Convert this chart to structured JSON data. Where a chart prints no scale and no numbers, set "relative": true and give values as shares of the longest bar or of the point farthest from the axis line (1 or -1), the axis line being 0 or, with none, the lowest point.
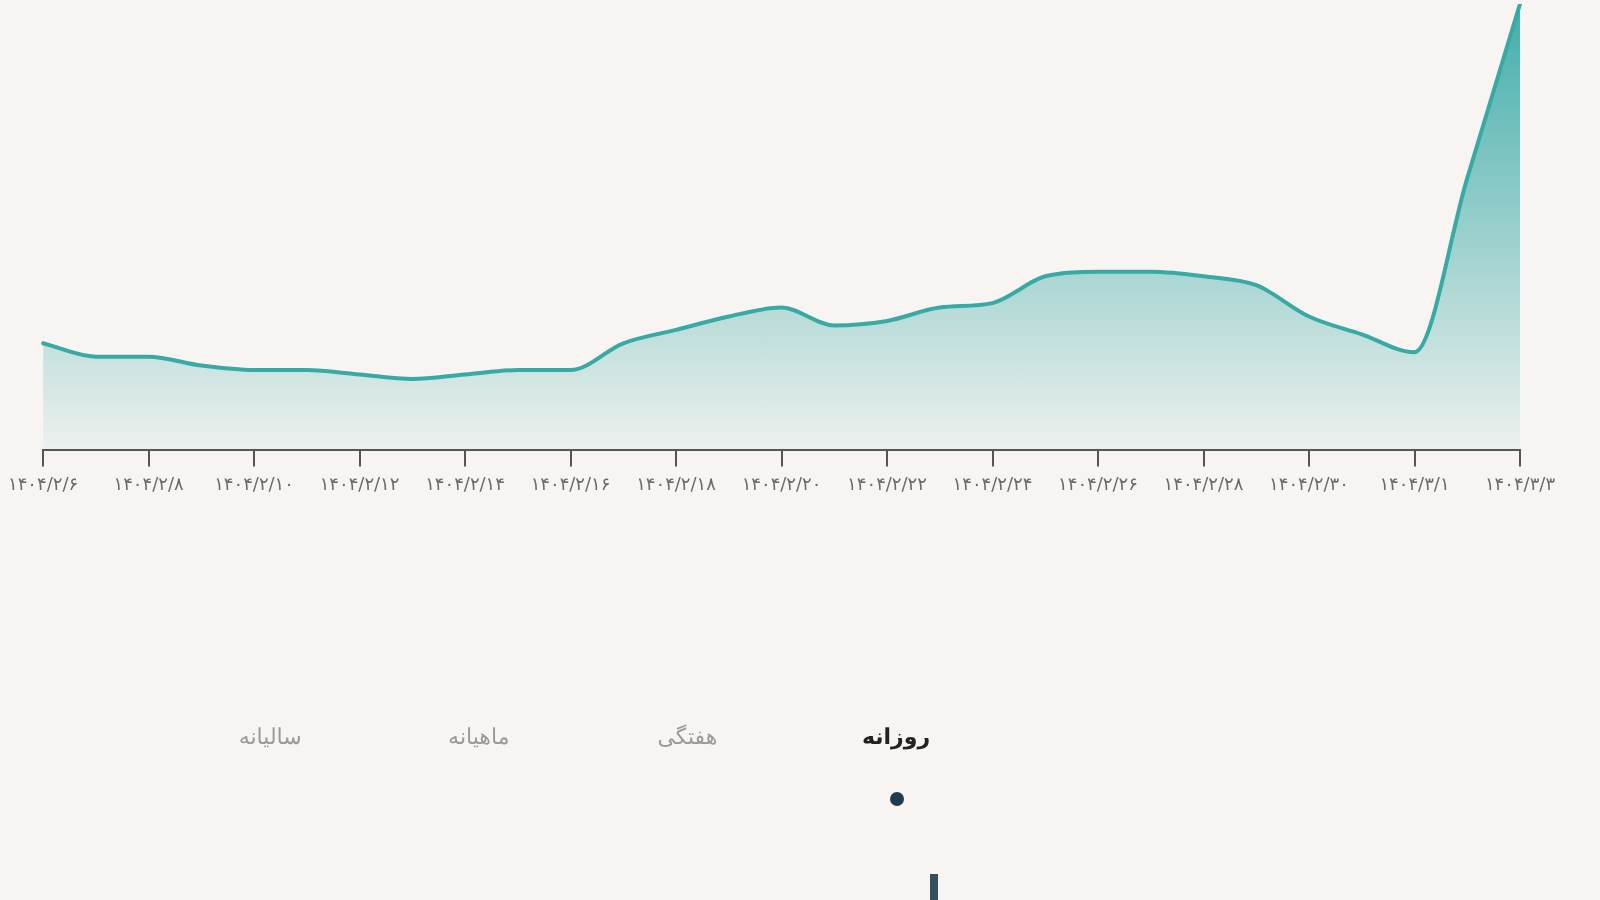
{
  "chart_data": {
    "type": "area",
    "relative": true,
    "categories": [
      "۱۴۰۴/۲/۶",
      null,
      "۱۴۰۴/۲/۸",
      null,
      "۱۴۰۴/۲/۱۰",
      null,
      "۱۴۰۴/۲/۱۲",
      null,
      "۱۴۰۴/۲/۱۴",
      null,
      "۱۴۰۴/۲/۱۶",
      null,
      "۱۴۰۴/۲/۱۸",
      null,
      "۱۴۰۴/۲/۲۰",
      null,
      "۱۴۰۴/۲/۲۲",
      null,
      "۱۴۰۴/۲/۲۴",
      null,
      "۱۴۰۴/۲/۲۶",
      null,
      "۱۴۰۴/۲/۲۸",
      null,
      "۱۴۰۴/۲/۳۰",
      null,
      "۱۴۰۴/۳/۱",
      null,
      "۱۴۰۴/۳/۳"
    ],
    "color": "#38aaa6",
    "values": [
      0.24,
      0.21,
      0.21,
      0.19,
      0.18,
      0.18,
      0.17,
      0.16,
      0.17,
      0.18,
      0.18,
      0.24,
      0.27,
      0.3,
      0.32,
      0.28,
      0.29,
      0.32,
      0.33,
      0.39,
      0.4,
      0.4,
      0.39,
      0.37,
      0.3,
      0.26,
      0.22,
      0.61,
      1
    ],
    "annotations": [
      "روزانه",
      "هفتگی",
      "ماهیانه",
      "سالیانه"
    ]
  }
}
